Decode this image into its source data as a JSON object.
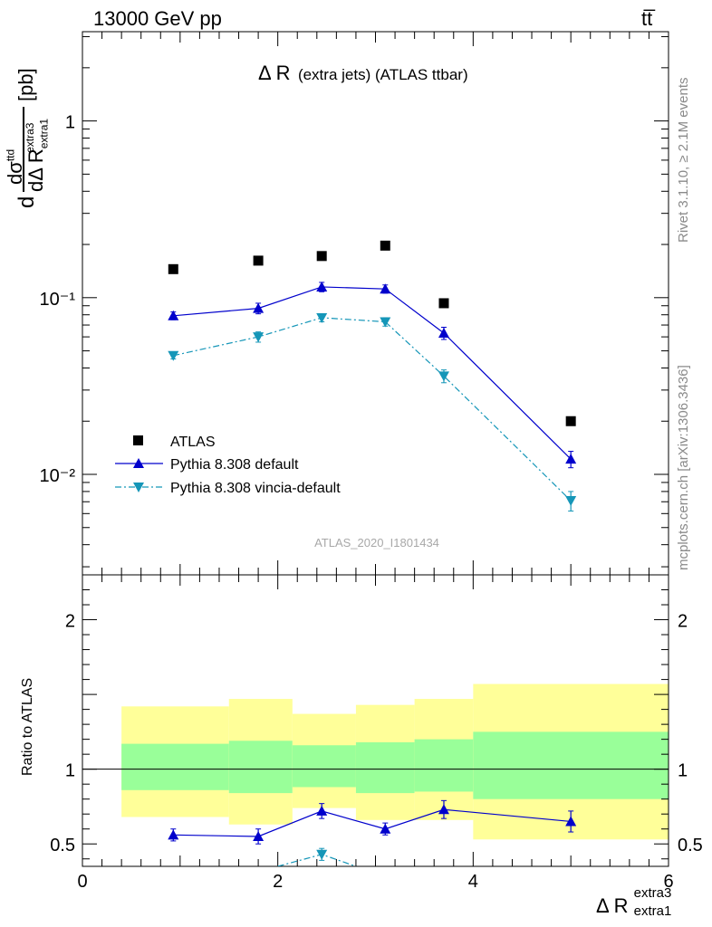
{
  "header": {
    "left": "13000 GeV pp",
    "right": "tt̅"
  },
  "side_labels": {
    "top": "Rivet 3.1.10, ≥ 2.1M events",
    "bottom": "mcplots.cern.ch [arXiv:1306.3436]"
  },
  "watermark": "ATLAS_2020_I1801434",
  "colors": {
    "atlas": "#000000",
    "pythia_default": "#0000cc",
    "vincia": "#1596b8",
    "band_outer": "#ffff99",
    "band_inner": "#99ff99"
  },
  "chart_data": [
    {
      "type": "line",
      "title": "Δ R (extra jets) (ATLAS ttbar)",
      "title_main": "Δ R",
      "title_sub": "(extra jets) (ATLAS ttbar)",
      "ylabel": "dσ/dΔR [pb]",
      "yscale": "log",
      "xlim": [
        0,
        6
      ],
      "ylim": [
        0.0027,
        3.2
      ],
      "yticks": [
        0.01,
        0.1,
        1
      ],
      "ytick_labels": [
        "10⁻²",
        "10⁻¹",
        "1"
      ],
      "legend": [
        "ATLAS",
        "Pythia 8.308 default",
        "Pythia 8.308 vincia-default"
      ],
      "series": [
        {
          "name": "ATLAS",
          "marker": "square",
          "x": [
            0.93,
            1.8,
            2.45,
            3.1,
            3.7,
            5.0
          ],
          "y": [
            0.145,
            0.162,
            0.172,
            0.197,
            0.093,
            0.02
          ],
          "err": [
            0,
            0,
            0,
            0,
            0,
            0
          ]
        },
        {
          "name": "Pythia 8.308 default",
          "marker": "triangle-up",
          "style": "solid",
          "x": [
            0.93,
            1.8,
            2.45,
            3.1,
            3.7,
            5.0
          ],
          "y": [
            0.079,
            0.087,
            0.115,
            0.112,
            0.063,
            0.0122
          ],
          "err": [
            0.004,
            0.006,
            0.007,
            0.006,
            0.005,
            0.0013
          ]
        },
        {
          "name": "Pythia 8.308 vincia-default",
          "marker": "triangle-down",
          "style": "dashdot",
          "x": [
            0.93,
            1.8,
            2.45,
            3.1,
            3.7,
            5.0
          ],
          "y": [
            0.047,
            0.06,
            0.077,
            0.073,
            0.036,
            0.0071
          ],
          "err": [
            0.002,
            0.004,
            0.004,
            0.004,
            0.003,
            0.0009
          ]
        }
      ]
    },
    {
      "type": "line",
      "xlabel": "Δ R",
      "xlabel_sup": "extra3",
      "xlabel_sub": "extra1",
      "ylabel": "Ratio to ATLAS",
      "xlim": [
        0,
        6
      ],
      "ylim": [
        0.35,
        2.3
      ],
      "xticks": [
        0,
        2,
        4,
        6
      ],
      "yticks": [
        0.5,
        1,
        2
      ],
      "ytick_labels": [
        "0.5",
        "1",
        "2"
      ],
      "bins": [
        [
          0.4,
          1.5
        ],
        [
          1.5,
          2.15
        ],
        [
          2.15,
          2.8
        ],
        [
          2.8,
          3.4
        ],
        [
          3.4,
          4.0
        ],
        [
          4.0,
          6.0
        ]
      ],
      "band_outer": [
        [
          0.68,
          1.42
        ],
        [
          0.63,
          1.47
        ],
        [
          0.74,
          1.37
        ],
        [
          0.66,
          1.43
        ],
        [
          0.66,
          1.47
        ],
        [
          0.53,
          1.57
        ]
      ],
      "band_inner": [
        [
          0.86,
          1.17
        ],
        [
          0.84,
          1.19
        ],
        [
          0.88,
          1.16
        ],
        [
          0.84,
          1.18
        ],
        [
          0.85,
          1.2
        ],
        [
          0.8,
          1.25
        ]
      ],
      "series": [
        {
          "name": "Pythia 8.308 default",
          "marker": "triangle-up",
          "style": "solid",
          "x": [
            0.93,
            1.8,
            2.45,
            3.1,
            3.7,
            5.0
          ],
          "y": [
            0.56,
            0.55,
            0.72,
            0.6,
            0.73,
            0.65
          ],
          "err": [
            0.04,
            0.05,
            0.05,
            0.04,
            0.06,
            0.07
          ]
        },
        {
          "name": "Pythia 8.308 vincia-default",
          "marker": "triangle-down",
          "style": "dashdot",
          "x": [
            2.45
          ],
          "y": [
            0.43
          ],
          "err": [
            0.04
          ]
        }
      ]
    }
  ]
}
